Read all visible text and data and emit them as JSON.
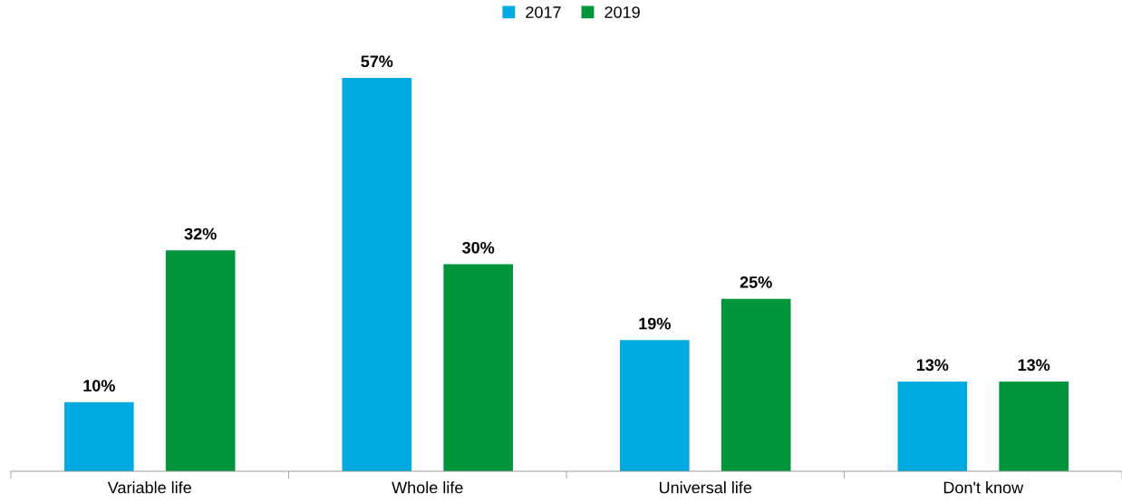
{
  "chart_data": {
    "type": "bar",
    "categories": [
      "Variable life",
      "Whole life",
      "Universal life",
      "Don't know"
    ],
    "series": [
      {
        "name": "2017",
        "color": "#00a9e0",
        "values": [
          10,
          57,
          19,
          13
        ],
        "value_labels": [
          "10%",
          "57%",
          "19%",
          "13%"
        ]
      },
      {
        "name": "2019",
        "color": "#00953b",
        "values": [
          32,
          30,
          25,
          13
        ],
        "value_labels": [
          "32%",
          "30%",
          "25%",
          "13%"
        ]
      }
    ],
    "legend": "top",
    "grid": false
  }
}
